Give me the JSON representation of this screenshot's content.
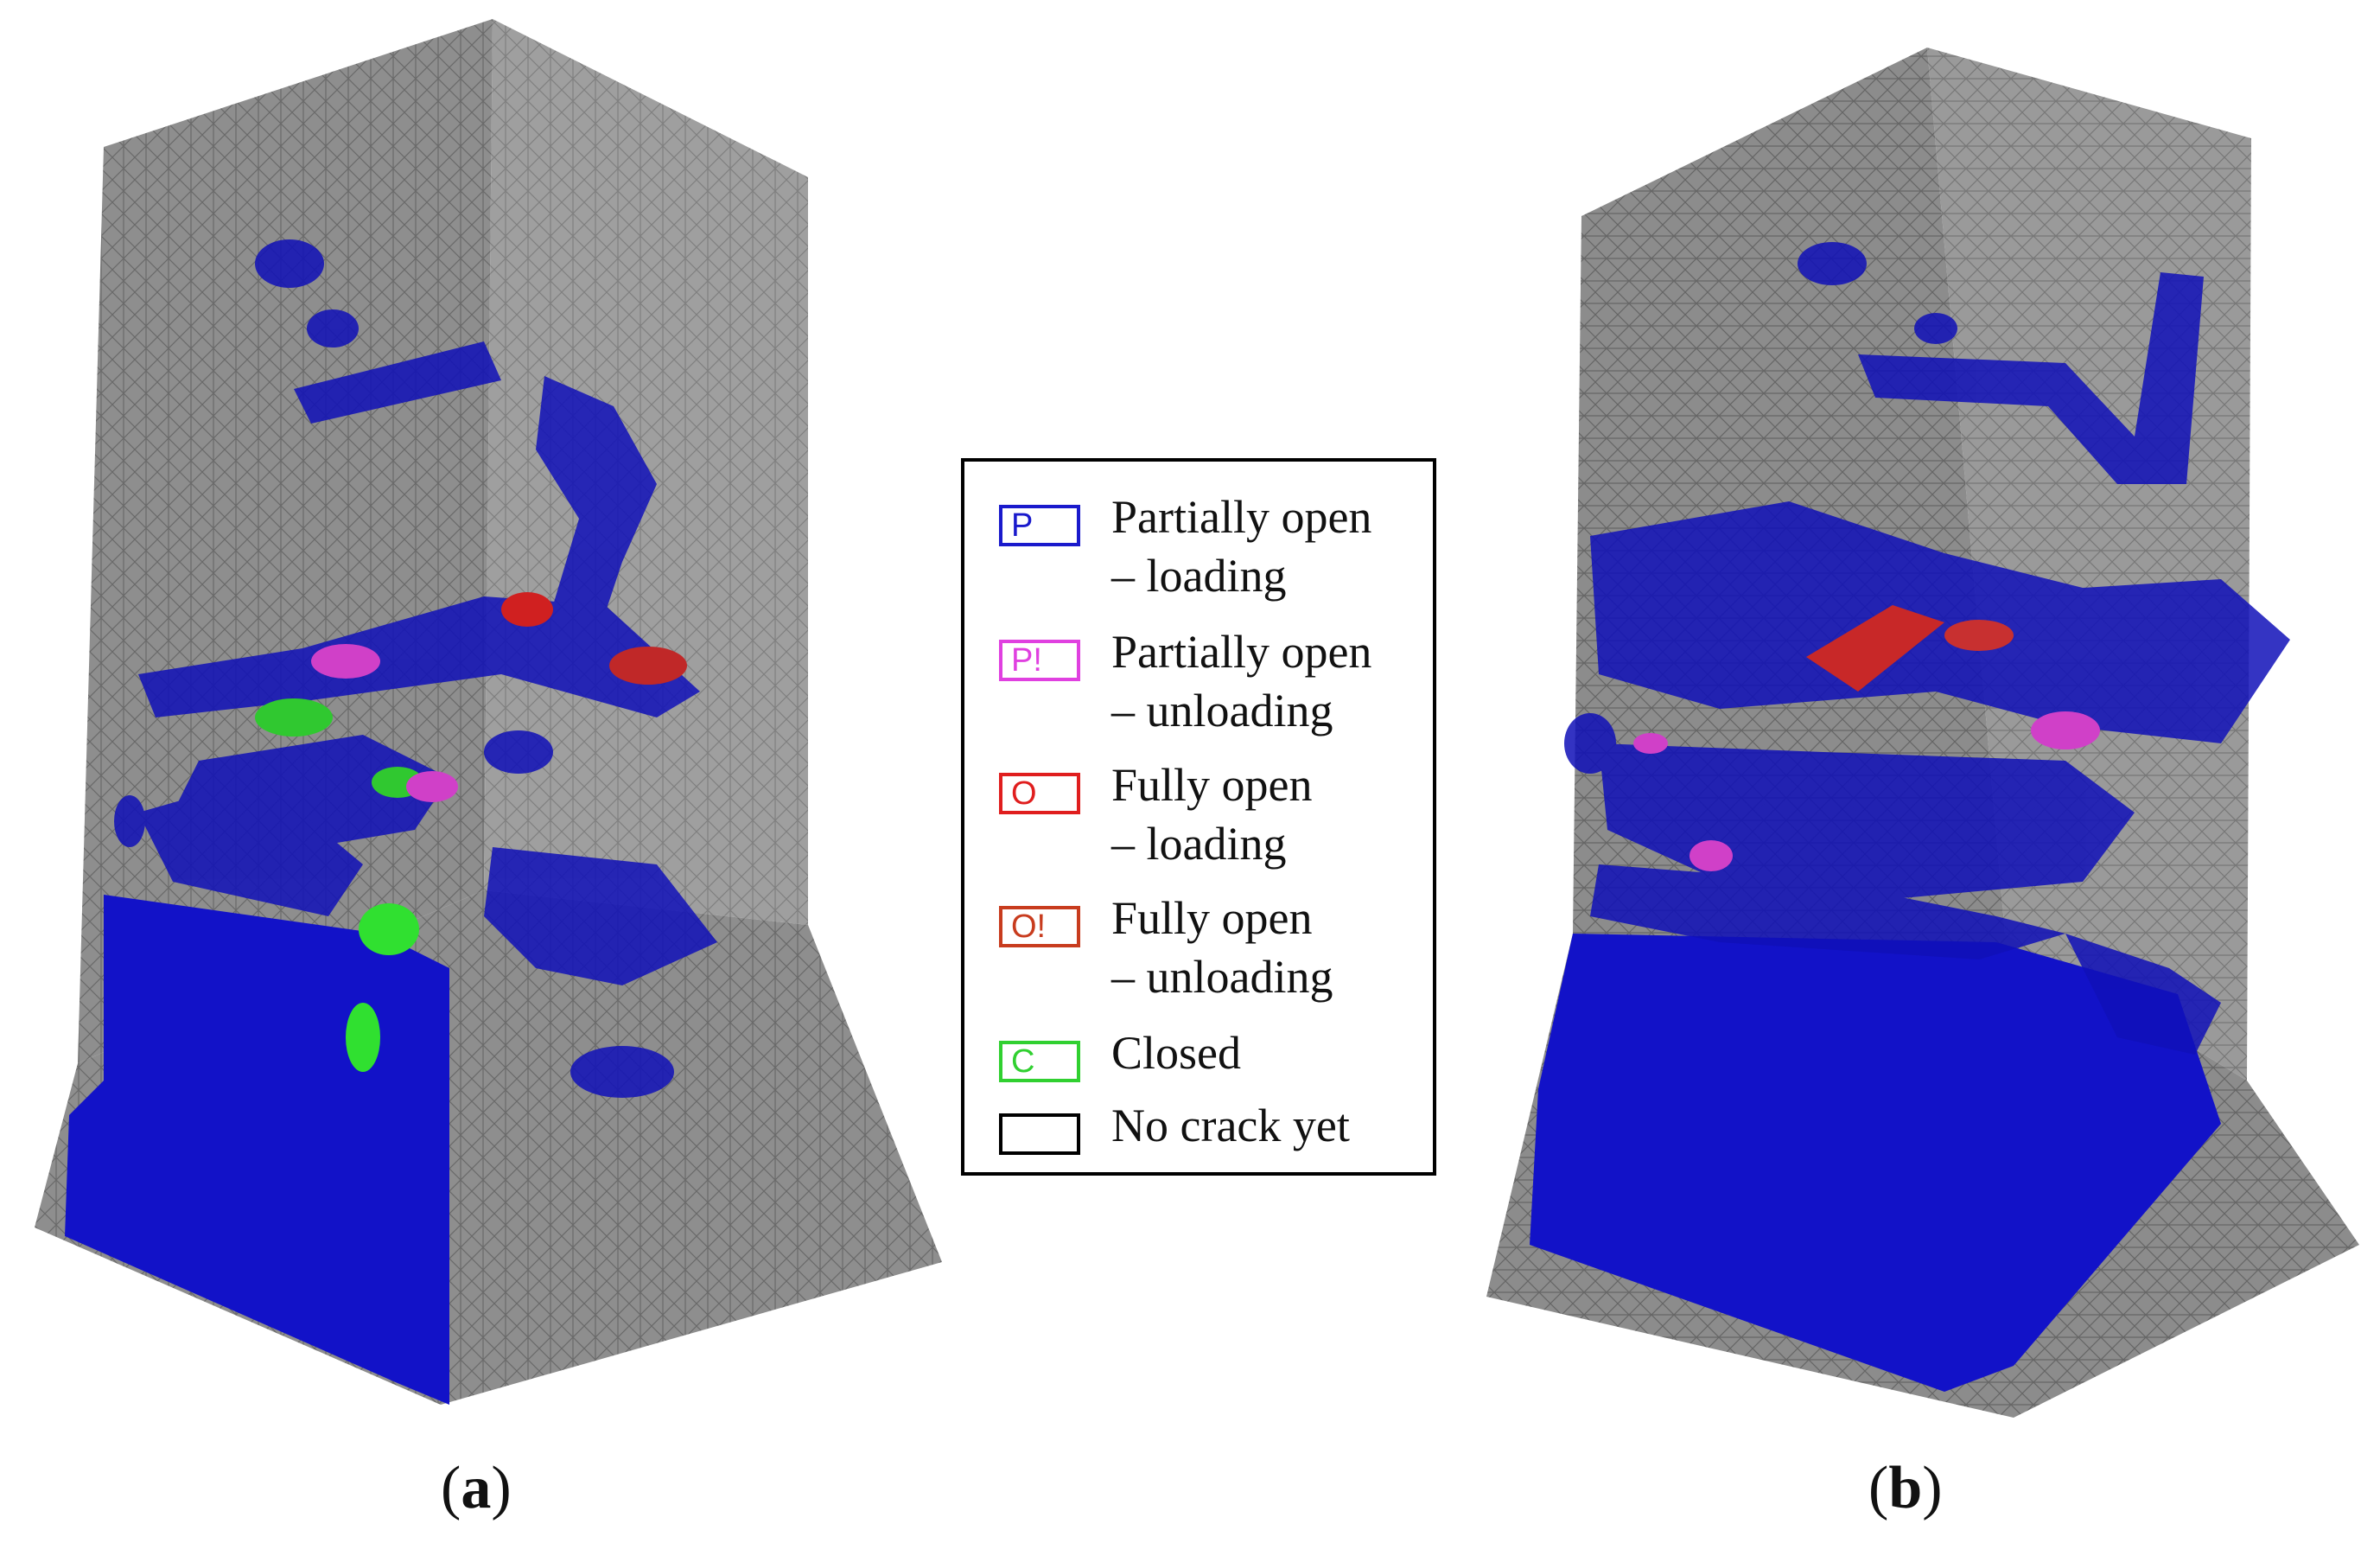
{
  "legend": {
    "items": [
      {
        "code": "P",
        "line1": "Partially open",
        "line2": "– loading",
        "color": "#1a1acc"
      },
      {
        "code": "P!",
        "line1": "Partially open",
        "line2": "– unloading",
        "color": "#e040e0"
      },
      {
        "code": "O",
        "line1": "Fully open",
        "line2": "– loading",
        "color": "#e01e1e"
      },
      {
        "code": "O!",
        "line1": "Fully open",
        "line2": "– unloading",
        "color": "#c83c1e"
      },
      {
        "code": "C",
        "line1": "Closed",
        "line2": "",
        "color": "#30d030"
      },
      {
        "code": "",
        "line1": "No crack yet",
        "line2": "",
        "color": "#000000"
      }
    ]
  },
  "captions": {
    "a": "a",
    "b": "b"
  },
  "colors": {
    "mesh": "#8c8c8c",
    "mesh_dark": "#6e6e6e",
    "crack_partial": "#1010c0"
  }
}
